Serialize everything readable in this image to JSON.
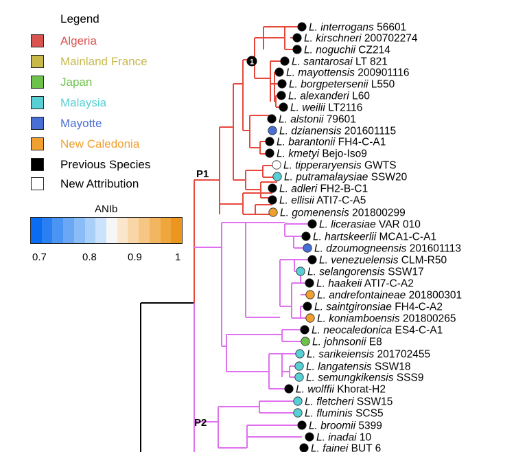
{
  "legend": {
    "title": "Legend",
    "items": [
      {
        "label": "Algeria",
        "color": "#d9534f",
        "text_color": "#d9534f"
      },
      {
        "label": "Mainland France",
        "color": "#c8b84a",
        "text_color": "#c8b84a"
      },
      {
        "label": "Japan",
        "color": "#6cc24a",
        "text_color": "#6cc24a"
      },
      {
        "label": "Malaysia",
        "color": "#58cfd4",
        "text_color": "#58cfd4"
      },
      {
        "label": "Mayotte",
        "color": "#4a6fd4",
        "text_color": "#4a6fd4"
      },
      {
        "label": "New Caledonia",
        "color": "#f0a030",
        "text_color": "#f0a030"
      },
      {
        "label": "Previous Species",
        "color": "#000000",
        "text_color": "#000000"
      },
      {
        "label": "New Attribution",
        "color": "#ffffff",
        "text_color": "#000000"
      }
    ]
  },
  "scale": {
    "title": "ANIb",
    "ticks": [
      "0.7",
      "0.8",
      "0.9",
      "1"
    ],
    "colors": [
      "#0a6cf0",
      "#2a80f2",
      "#4a94f4",
      "#6aa8f6",
      "#8abcf8",
      "#aad0fa",
      "#cae2fc",
      "#f6f6f6",
      "#fbe6cc",
      "#f8d6a8",
      "#f5c684",
      "#f2b660",
      "#efa63c",
      "#ec9620"
    ]
  },
  "colors": {
    "p1_branch": "#e8483c",
    "p2_branch": "#e070f0",
    "root_branch": "#000000"
  },
  "tree": {
    "clade_labels": [
      "P1",
      "P2"
    ],
    "node_marker": "1",
    "leaves": [
      {
        "genus": "L.",
        "species": "interrogans",
        "strain": "56601",
        "color": "#000000"
      },
      {
        "genus": "L.",
        "species": "kirschneri",
        "strain": "200702274",
        "color": "#000000"
      },
      {
        "genus": "L.",
        "species": "noguchii",
        "strain": "CZ214",
        "color": "#000000"
      },
      {
        "genus": "L.",
        "species": "santarosai",
        "strain": "LT 821",
        "color": "#000000"
      },
      {
        "genus": "L.",
        "species": "mayottensis",
        "strain": "200901116",
        "color": "#000000"
      },
      {
        "genus": "L.",
        "species": "borgpetersenii",
        "strain": "L550",
        "color": "#000000"
      },
      {
        "genus": "L.",
        "species": "alexanderi",
        "strain": "L60",
        "color": "#000000"
      },
      {
        "genus": "L.",
        "species": "weilii",
        "strain": "LT2116",
        "color": "#000000"
      },
      {
        "genus": "L.",
        "species": "alstonii",
        "strain": "79601",
        "color": "#000000"
      },
      {
        "genus": "L.",
        "species": "dzianensis",
        "strain": "201601115",
        "color": "#4a6fd4"
      },
      {
        "genus": "L.",
        "species": "barantonii",
        "strain": "FH4-C-A1",
        "color": "#000000"
      },
      {
        "genus": "L.",
        "species": "kmetyi",
        "strain": "Bejo-Iso9",
        "color": "#000000"
      },
      {
        "genus": "L.",
        "species": "tipperaryensis",
        "strain": "GWTS",
        "color": "#ffffff"
      },
      {
        "genus": "L.",
        "species": "putramalaysiae",
        "strain": "SSW20",
        "color": "#58cfd4"
      },
      {
        "genus": "L.",
        "species": "adleri",
        "strain": "FH2-B-C1",
        "color": "#000000"
      },
      {
        "genus": "L.",
        "species": "ellisii",
        "strain": "ATI7-C-A5",
        "color": "#000000"
      },
      {
        "genus": "L.",
        "species": "gomenensis",
        "strain": "201800299",
        "color": "#f0a030"
      },
      {
        "genus": "L.",
        "species": "licerasiae",
        "strain": "VAR 010",
        "color": "#000000"
      },
      {
        "genus": "L.",
        "species": "hartskeerlii",
        "strain": "MCA1-C-A1",
        "color": "#000000"
      },
      {
        "genus": "L.",
        "species": "dzoumogneensis",
        "strain": "201601113",
        "color": "#4a6fd4"
      },
      {
        "genus": "L.",
        "species": "venezuelensis",
        "strain": "CLM-R50",
        "color": "#000000"
      },
      {
        "genus": "L.",
        "species": "selangorensis",
        "strain": "SSW17",
        "color": "#58cfd4"
      },
      {
        "genus": "L.",
        "species": "haakeii",
        "strain": "ATI7-C-A2",
        "color": "#000000"
      },
      {
        "genus": "L.",
        "species": "andrefontaineae",
        "strain": "201800301",
        "color": "#f0a030"
      },
      {
        "genus": "L.",
        "species": "saintgironsiae",
        "strain": "FH4-C-A2",
        "color": "#000000"
      },
      {
        "genus": "L.",
        "species": "koniamboensis",
        "strain": "201800265",
        "color": "#f0a030"
      },
      {
        "genus": "L.",
        "species": "neocaledonica",
        "strain": "ES4-C-A1",
        "color": "#000000"
      },
      {
        "genus": "L.",
        "species": "johnsonii",
        "strain": "E8",
        "color": "#6cc24a"
      },
      {
        "genus": "L.",
        "species": "sarikeiensis",
        "strain": "201702455",
        "color": "#58cfd4"
      },
      {
        "genus": "L.",
        "species": "langatensis",
        "strain": "SSW18",
        "color": "#58cfd4"
      },
      {
        "genus": "L.",
        "species": "semungkikensis",
        "strain": "SSS9",
        "color": "#58cfd4"
      },
      {
        "genus": "L.",
        "species": "wolffii",
        "strain": "Khorat-H2",
        "color": "#000000"
      },
      {
        "genus": "L.",
        "species": "fletcheri",
        "strain": "SSW15",
        "color": "#58cfd4"
      },
      {
        "genus": "L.",
        "species": "fluminis",
        "strain": "SCS5",
        "color": "#58cfd4"
      },
      {
        "genus": "L.",
        "species": "broomii",
        "strain": "5399",
        "color": "#000000"
      },
      {
        "genus": "L.",
        "species": "inadai",
        "strain": "10",
        "color": "#000000"
      },
      {
        "genus": "L.",
        "species": "fainei",
        "strain": "BUT 6",
        "color": "#000000"
      }
    ]
  }
}
